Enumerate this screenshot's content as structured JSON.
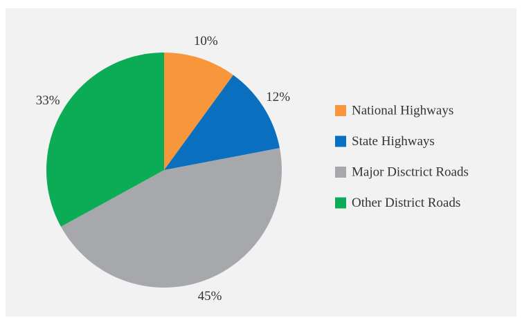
{
  "chart_data": {
    "type": "pie",
    "categories": [
      "National Highways",
      "State Highways",
      "Major Disctrict Roads",
      "Other District Roads"
    ],
    "values": [
      10,
      12,
      45,
      33
    ],
    "value_labels": [
      "10%",
      "12%",
      "45%",
      "33%"
    ],
    "colors": [
      "#f7963a",
      "#0a6fbf",
      "#a6a8ab",
      "#0cab55"
    ],
    "legend": "right"
  }
}
